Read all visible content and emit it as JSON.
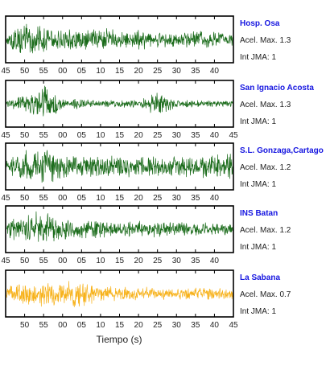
{
  "chart_data": {
    "type": "line",
    "xlabel": "Tiempo (s)",
    "panels": [
      {
        "station": "Hosp. Osa",
        "accel_label": "Acel. Max. 1.3",
        "int_label": "Int JMA: 1",
        "color": "#1a6b1a",
        "x_ticks": [
          "45",
          "50",
          "55",
          "00",
          "05",
          "10",
          "15",
          "20",
          "25",
          "30",
          "35",
          "40"
        ],
        "x_tick_start": 0,
        "amp": [
          0.35,
          0.95,
          0.6,
          0.5,
          0.55,
          0.55,
          0.5,
          0.5,
          0.45,
          0.45,
          0.45,
          0.4,
          0.35
        ]
      },
      {
        "station": "San Ignacio Acosta",
        "accel_label": "Acel. Max. 1.3",
        "int_label": "Int JMA: 1",
        "color": "#1a6b1a",
        "x_ticks": [
          "45",
          "50",
          "55",
          "00",
          "05",
          "10",
          "15",
          "20",
          "25",
          "30",
          "35",
          "40",
          "45"
        ],
        "x_tick_start": 0,
        "amp": [
          0.2,
          0.45,
          0.95,
          0.3,
          0.25,
          0.2,
          0.2,
          0.2,
          0.6,
          0.2,
          0.18,
          0.18,
          0.15
        ]
      },
      {
        "station": "S.L. Gonzaga,Cartago",
        "accel_label": "Acel. Max. 1.2",
        "int_label": "Int JMA: 1",
        "color": "#1a6b1a",
        "x_ticks": [
          "45",
          "50",
          "55",
          "00",
          "05",
          "10",
          "15",
          "20",
          "25",
          "30",
          "35",
          "40"
        ],
        "x_tick_start": 0,
        "amp": [
          0.45,
          0.85,
          0.9,
          0.7,
          0.55,
          0.5,
          0.55,
          0.5,
          0.5,
          0.5,
          0.5,
          0.6,
          0.65
        ]
      },
      {
        "station": "INS Batan",
        "accel_label": "Acel. Max. 1.2",
        "int_label": "Int JMA: 1",
        "color": "#1a6b1a",
        "x_ticks": [
          "45",
          "50",
          "55",
          "00",
          "05",
          "10",
          "15",
          "20",
          "25",
          "30",
          "35",
          "40"
        ],
        "x_tick_start": 0,
        "amp": [
          0.35,
          0.8,
          0.9,
          0.55,
          0.45,
          0.45,
          0.4,
          0.4,
          0.4,
          0.35,
          0.35,
          0.3,
          0.3
        ]
      },
      {
        "station": "La Sabana",
        "accel_label": "Acel. Max. 0.7",
        "int_label": "Int JMA: 1",
        "color": "#f7b21b",
        "x_ticks": [
          "50",
          "55",
          "00",
          "05",
          "10",
          "15",
          "20",
          "25",
          "30",
          "35",
          "40",
          "45"
        ],
        "x_tick_start": 1,
        "amp": [
          0.45,
          0.55,
          0.65,
          0.55,
          0.85,
          0.4,
          0.35,
          0.35,
          0.3,
          0.3,
          0.35,
          0.3,
          0.3
        ]
      }
    ]
  }
}
